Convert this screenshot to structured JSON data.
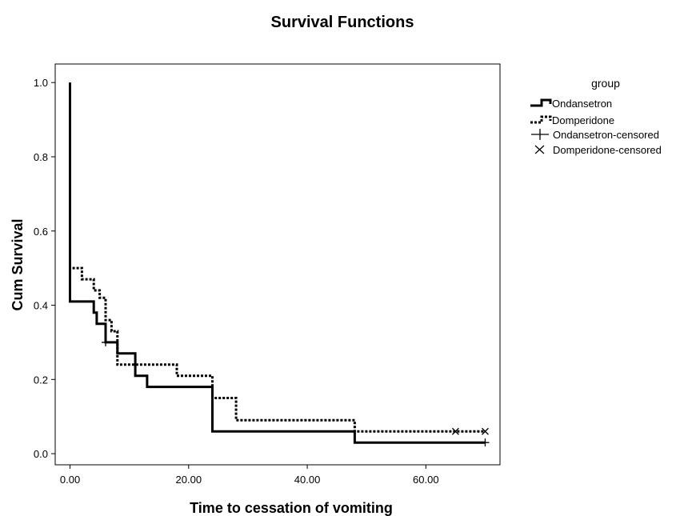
{
  "chart_data": {
    "type": "line",
    "title": "Survival Functions",
    "xlabel": "Time to cessation of vomiting",
    "ylabel": "Cum Survival",
    "xlim": [
      -2.5,
      72.5
    ],
    "ylim": [
      -0.03,
      1.05
    ],
    "xticks": [
      0,
      20,
      40,
      60
    ],
    "xtick_labels": [
      "0.00",
      "20.00",
      "40.00",
      "60.00"
    ],
    "yticks": [
      0.0,
      0.2,
      0.4,
      0.6,
      0.8,
      1.0
    ],
    "ytick_labels": [
      "0.0",
      "0.2",
      "0.4",
      "0.6",
      "0.8",
      "1.0"
    ],
    "grid": false,
    "legend": {
      "title": "group",
      "position": "right",
      "entries": [
        "Ondansetron",
        "Domperidone",
        "Ondansetron-censored",
        "Domperidone-censored"
      ]
    },
    "series": [
      {
        "name": "Ondansetron",
        "style": "solid",
        "color": "#000000",
        "step_points": [
          [
            0,
            1.0
          ],
          [
            0,
            0.41
          ],
          [
            4,
            0.41
          ],
          [
            4,
            0.38
          ],
          [
            4.5,
            0.38
          ],
          [
            4.5,
            0.35
          ],
          [
            6,
            0.35
          ],
          [
            6,
            0.3
          ],
          [
            8,
            0.3
          ],
          [
            8,
            0.27
          ],
          [
            11,
            0.27
          ],
          [
            11,
            0.21
          ],
          [
            13,
            0.21
          ],
          [
            13,
            0.18
          ],
          [
            24,
            0.18
          ],
          [
            24,
            0.06
          ],
          [
            48,
            0.06
          ],
          [
            48,
            0.03
          ],
          [
            70,
            0.03
          ]
        ],
        "censored": [
          [
            6,
            0.3
          ],
          [
            70,
            0.03
          ]
        ]
      },
      {
        "name": "Domperidone",
        "style": "dotted",
        "color": "#000000",
        "step_points": [
          [
            0,
            1.0
          ],
          [
            0,
            0.5
          ],
          [
            2,
            0.5
          ],
          [
            2,
            0.47
          ],
          [
            4,
            0.47
          ],
          [
            4,
            0.44
          ],
          [
            5,
            0.44
          ],
          [
            5,
            0.42
          ],
          [
            6,
            0.42
          ],
          [
            6,
            0.36
          ],
          [
            7,
            0.36
          ],
          [
            7,
            0.33
          ],
          [
            8,
            0.33
          ],
          [
            8,
            0.24
          ],
          [
            18,
            0.24
          ],
          [
            18,
            0.21
          ],
          [
            24,
            0.21
          ],
          [
            24,
            0.15
          ],
          [
            28,
            0.15
          ],
          [
            28,
            0.09
          ],
          [
            48,
            0.09
          ],
          [
            48,
            0.06
          ],
          [
            70,
            0.06
          ]
        ],
        "censored": [
          [
            65,
            0.06
          ],
          [
            70,
            0.06
          ]
        ]
      }
    ]
  }
}
